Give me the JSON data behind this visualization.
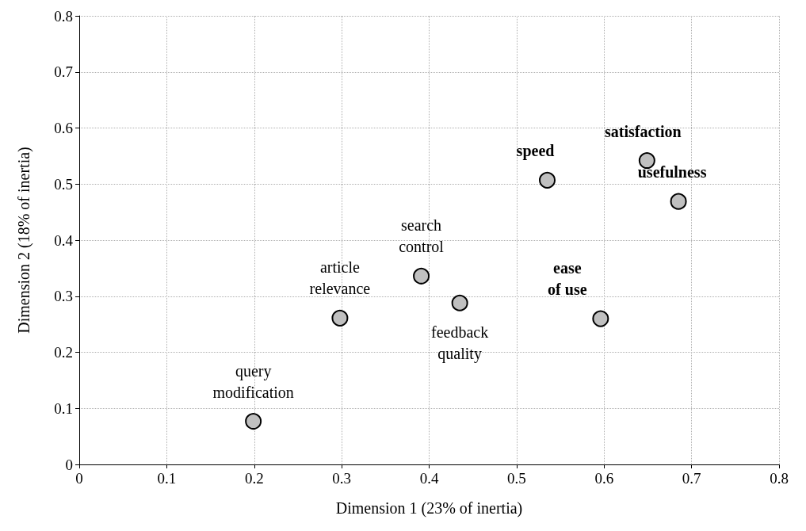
{
  "chart_data": {
    "type": "scatter",
    "xlabel": "Dimension 1 (23% of inertia)",
    "ylabel": "Dimension 2 (18% of inertia)",
    "xlim": [
      0,
      0.8
    ],
    "xticks": [
      0,
      0.1,
      0.2,
      0.3,
      0.4,
      0.5,
      0.6,
      0.7,
      0.8
    ],
    "ylim": [
      0,
      0.8
    ],
    "yticks": [
      0,
      0.1,
      0.2,
      0.3,
      0.4,
      0.5,
      0.6,
      0.7,
      0.8
    ],
    "grid": true,
    "marker": "circle",
    "series": [
      {
        "color": "#c0c0c0",
        "x": [
          0.199,
          0.298,
          0.391,
          0.435
        ],
        "values": [
          0.077,
          0.261,
          0.336,
          0.288
        ],
        "value_labels": [
          "query\nmodification",
          "article\nrelevance",
          "search\ncontrol",
          "feedback\nquality"
        ]
      },
      {
        "type": "scatter",
        "color": "#c0c0c0",
        "x": [
          0.535,
          0.649,
          0.685,
          0.596
        ],
        "values": [
          0.507,
          0.542,
          0.469,
          0.26
        ],
        "value_labels": [
          "speed",
          "satisfaction",
          "usefulness",
          "ease\nof use"
        ]
      }
    ]
  }
}
